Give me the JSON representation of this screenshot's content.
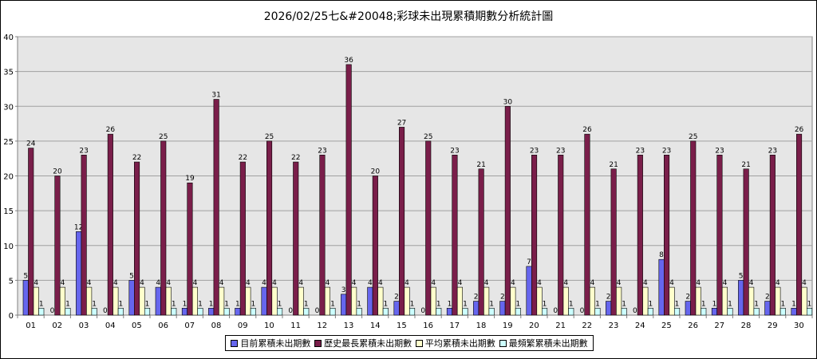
{
  "chart_data": {
    "type": "bar",
    "title": "2026/02/25七&#20048;彩球未出現累積期數分析統計圖",
    "categories": [
      "01",
      "02",
      "03",
      "04",
      "05",
      "06",
      "07",
      "08",
      "09",
      "10",
      "11",
      "12",
      "13",
      "14",
      "15",
      "16",
      "17",
      "18",
      "19",
      "20",
      "21",
      "22",
      "23",
      "24",
      "25",
      "26",
      "27",
      "28",
      "29",
      "30"
    ],
    "ylim": [
      0,
      40
    ],
    "yticks": [
      0,
      5,
      10,
      15,
      20,
      25,
      30,
      35,
      40
    ],
    "grid": true,
    "legend_position": "bottom",
    "series": [
      {
        "name": "目前累積未出期數",
        "color": "#6666ee",
        "values": [
          5,
          0,
          12,
          0,
          5,
          4,
          1,
          1,
          1,
          4,
          0,
          0,
          3,
          4,
          2,
          0,
          1,
          2,
          2,
          7,
          0,
          0,
          2,
          0,
          8,
          2,
          1,
          5,
          2,
          1
        ]
      },
      {
        "name": "歷史最長累積未出期數",
        "color": "#7a1e4a",
        "values": [
          24,
          20,
          23,
          26,
          22,
          25,
          19,
          31,
          22,
          25,
          22,
          23,
          36,
          20,
          27,
          25,
          23,
          21,
          30,
          23,
          23,
          26,
          21,
          23,
          23,
          25,
          23,
          21,
          23,
          26
        ]
      },
      {
        "name": "平均累積未出期數",
        "color": "#ffffcc",
        "values": [
          4,
          4,
          4,
          4,
          4,
          4,
          4,
          4,
          4,
          4,
          4,
          4,
          4,
          4,
          4,
          4,
          4,
          4,
          4,
          4,
          4,
          4,
          4,
          4,
          4,
          4,
          4,
          4,
          4,
          4
        ]
      },
      {
        "name": "最頻繁累積未出期數",
        "color": "#ccffff",
        "values": [
          1,
          1,
          1,
          1,
          1,
          1,
          1,
          1,
          1,
          1,
          1,
          1,
          1,
          1,
          1,
          1,
          1,
          1,
          1,
          1,
          1,
          1,
          1,
          1,
          1,
          1,
          1,
          1,
          1,
          1
        ]
      }
    ]
  }
}
